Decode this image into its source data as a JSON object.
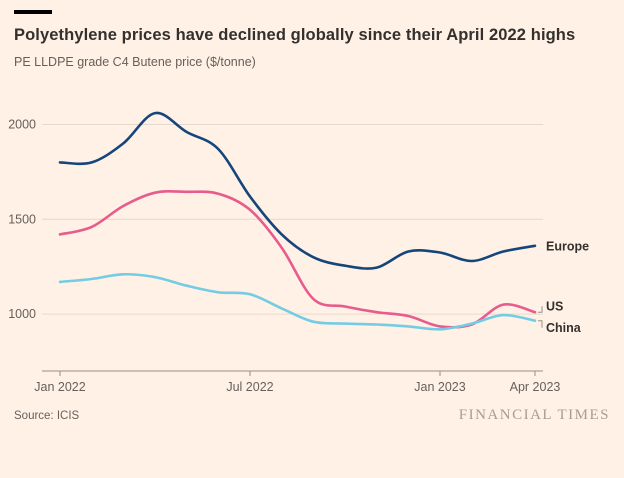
{
  "page": {
    "background_color": "#FFF1E5",
    "accent_bar_color": "#000000",
    "title": "Polyethylene prices have declined globally since their April 2022 highs",
    "subtitle": "PE LLDPE grade C4 Butene price ($/tonne)",
    "source": "Source: ICIS",
    "brand": "FINANCIAL TIMES"
  },
  "chart_data": {
    "type": "line",
    "title": "Polyethylene prices have declined globally since their April 2022 highs",
    "ylabel": "PE LLDPE grade C4 Butene price ($/tonne)",
    "x": [
      "Jan 2022",
      "Feb 2022",
      "Mar 2022",
      "Apr 2022",
      "May 2022",
      "Jun 2022",
      "Jul 2022",
      "Aug 2022",
      "Sep 2022",
      "Oct 2022",
      "Nov 2022",
      "Dec 2022",
      "Jan 2023",
      "Feb 2023",
      "Mar 2023",
      "Apr 2023"
    ],
    "xticks": [
      {
        "index": 0,
        "label": "Jan 2022"
      },
      {
        "index": 6,
        "label": "Jul 2022"
      },
      {
        "index": 12,
        "label": "Jan 2023"
      },
      {
        "index": 15,
        "label": "Apr 2023"
      }
    ],
    "yticks": [
      1000,
      1500,
      2000
    ],
    "ylim": [
      700,
      2150
    ],
    "grid": "horizontal",
    "legend_position": "line-end-labels",
    "series": [
      {
        "name": "Europe",
        "color": "#14467C",
        "values": [
          1800,
          1800,
          1900,
          2060,
          1960,
          1870,
          1620,
          1420,
          1300,
          1255,
          1245,
          1330,
          1325,
          1280,
          1330,
          1360
        ]
      },
      {
        "name": "US",
        "color": "#E75B8D",
        "values": [
          1420,
          1460,
          1570,
          1640,
          1645,
          1635,
          1550,
          1350,
          1080,
          1040,
          1010,
          990,
          935,
          945,
          1050,
          1010
        ]
      },
      {
        "name": "China",
        "color": "#74CCE4",
        "values": [
          1170,
          1185,
          1210,
          1195,
          1150,
          1115,
          1105,
          1030,
          960,
          950,
          945,
          935,
          920,
          950,
          995,
          965
        ]
      }
    ],
    "grid_color": "#E6D9CB",
    "axis_color": "#998F86",
    "tick_label_color": "#66605C",
    "series_label_color": "#33302E"
  }
}
